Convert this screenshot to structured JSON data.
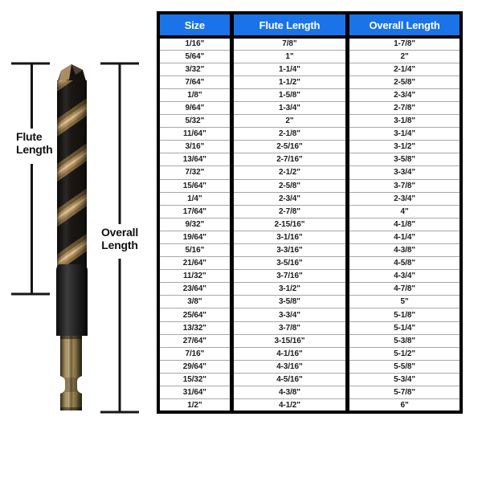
{
  "chart_data": {
    "type": "table",
    "columns": [
      "Size",
      "Flute Length",
      "Overall Length"
    ],
    "rows": [
      [
        "1/16\"",
        "7/8\"",
        "1-7/8\""
      ],
      [
        "5/64\"",
        "1\"",
        "2\""
      ],
      [
        "3/32\"",
        "1-1/4\"",
        "2-1/4\""
      ],
      [
        "7/64\"",
        "1-1/2\"",
        "2-5/8\""
      ],
      [
        "1/8\"",
        "1-5/8\"",
        "2-3/4\""
      ],
      [
        "9/64\"",
        "1-3/4\"",
        "2-7/8\""
      ],
      [
        "5/32\"",
        "2\"",
        "3-1/8\""
      ],
      [
        "11/64\"",
        "2-1/8\"",
        "3-1/4\""
      ],
      [
        "3/16\"",
        "2-5/16\"",
        "3-1/2\""
      ],
      [
        "13/64\"",
        "2-7/16\"",
        "3-5/8\""
      ],
      [
        "7/32\"",
        "2-1/2\"",
        "3-3/4\""
      ],
      [
        "15/64\"",
        "2-5/8\"",
        "3-7/8\""
      ],
      [
        "1/4\"",
        "2-3/4\"",
        "2-3/4\""
      ],
      [
        "17/64\"",
        "2-7/8\"",
        "4\""
      ],
      [
        "9/32\"",
        "2-15/16\"",
        "4-1/8\""
      ],
      [
        "19/64\"",
        "3-1/16\"",
        "4-1/4\""
      ],
      [
        "5/16\"",
        "3-3/16\"",
        "4-3/8\""
      ],
      [
        "21/64\"",
        "3-5/16\"",
        "4-5/8\""
      ],
      [
        "11/32\"",
        "3-7/16\"",
        "4-3/4\""
      ],
      [
        "23/64\"",
        "3-1/2\"",
        "4-7/8\""
      ],
      [
        "3/8\"",
        "3-5/8\"",
        "5\""
      ],
      [
        "25/64\"",
        "3-3/4\"",
        "5-1/8\""
      ],
      [
        "13/32\"",
        "3-7/8\"",
        "5-1/4\""
      ],
      [
        "27/64\"",
        "3-15/16\"",
        "5-3/8\""
      ],
      [
        "7/16\"",
        "4-1/16\"",
        "5-1/2\""
      ],
      [
        "29/64\"",
        "4-3/16\"",
        "5-5/8\""
      ],
      [
        "15/32\"",
        "4-5/16\"",
        "5-3/4\""
      ],
      [
        "31/64\"",
        "4-3/8\"",
        "5-7/8\""
      ],
      [
        "1/2\"",
        "4-1/2\"",
        "6\""
      ]
    ]
  },
  "diagram": {
    "flute_label": [
      "Flute",
      "Length"
    ],
    "overall_label": [
      "Overall",
      "Length"
    ]
  },
  "colors": {
    "header_bg": "#1a73e8",
    "header_text": "#ffffff",
    "table_border": "#000000",
    "row_divider": "#a8a8a8",
    "annotation": "#151515",
    "drill_black": "#191613",
    "drill_gold": "#ad8c5a"
  }
}
